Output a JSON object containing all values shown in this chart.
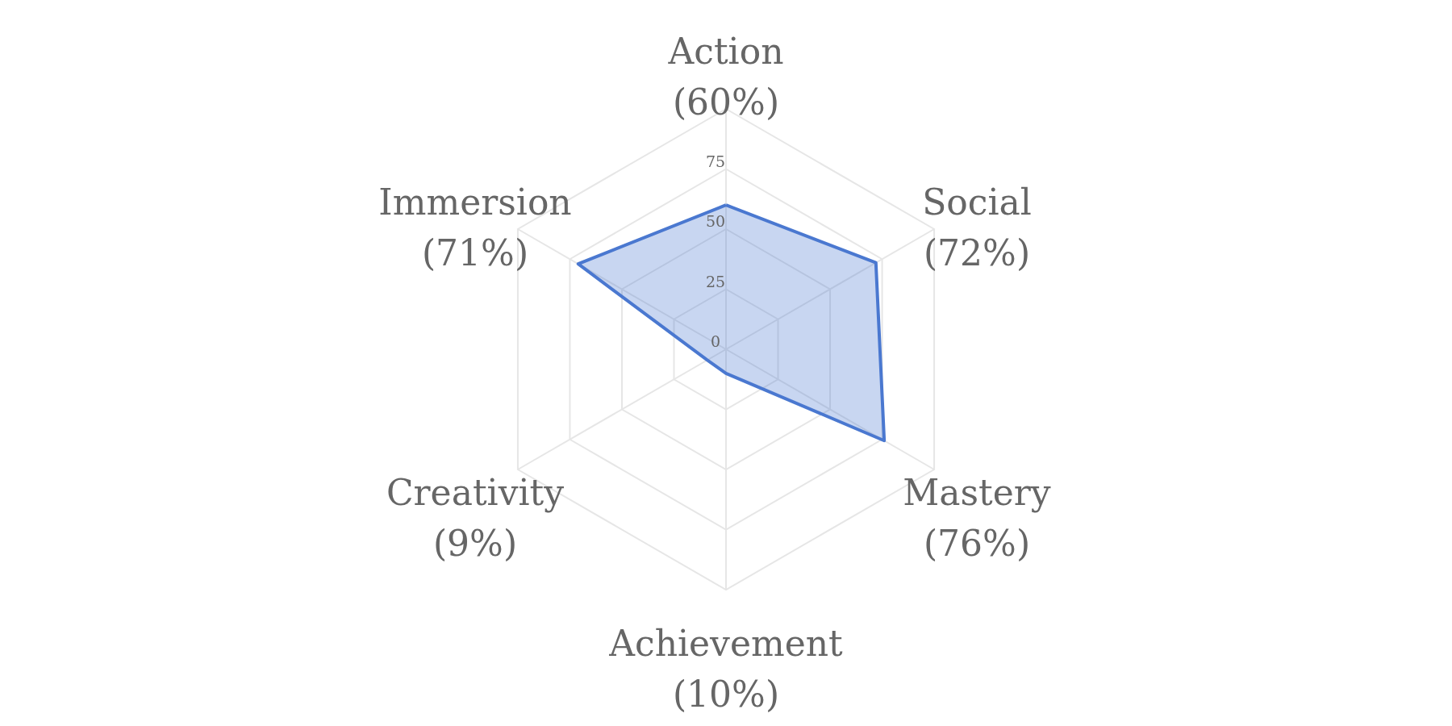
{
  "chart_data": {
    "type": "radar",
    "categories": [
      "Action (60%)",
      "Social (72%)",
      "Mastery (76%)",
      "Achievement (10%)",
      "Creativity (9%)",
      "Immersion (71%)"
    ],
    "series": [
      {
        "color": "#4a78d0",
        "values": [
          60,
          72,
          76,
          10,
          9,
          71
        ]
      }
    ],
    "ylim": [
      0,
      100
    ],
    "yticks": [
      0,
      25,
      50,
      75
    ],
    "grid": true,
    "legend": false
  }
}
